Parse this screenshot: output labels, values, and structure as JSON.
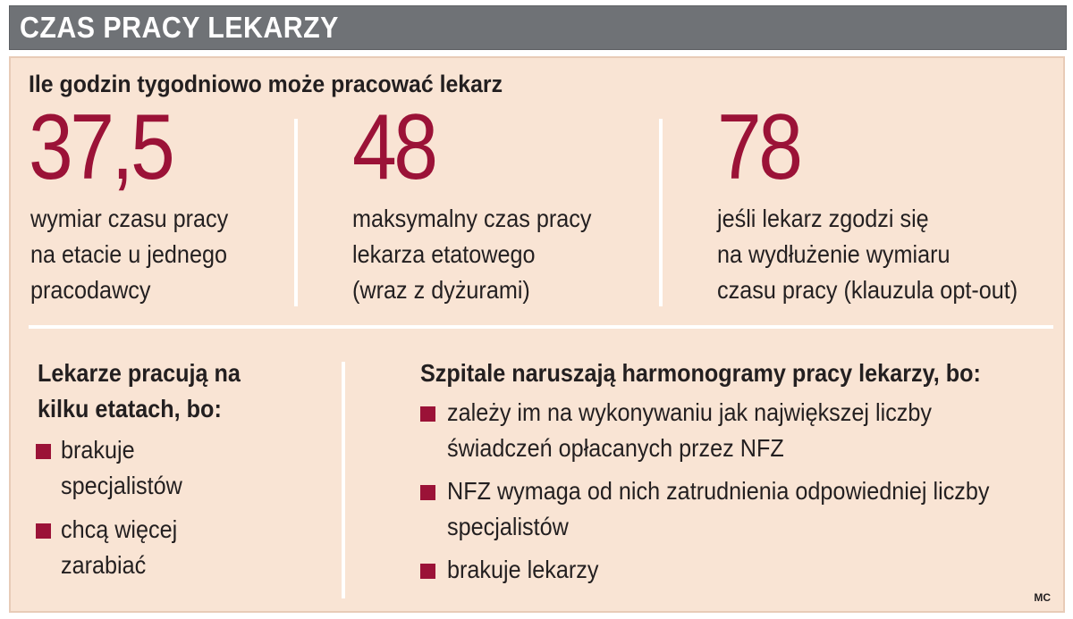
{
  "title": "CZAS PRACY LEKARZY",
  "heading": "Ile godzin tygodniowo może pracować lekarz",
  "stats": [
    {
      "value": "37,5",
      "lines": [
        "wymiar czasu pracy",
        "na etacie u jednego",
        "pracodawcy"
      ]
    },
    {
      "value": "48",
      "lines": [
        "maksymalny czas pracy",
        "lekarza etatowego",
        "(wraz z dyżurami)"
      ]
    },
    {
      "value": "78",
      "lines": [
        "jeśli lekarz zgodzi się",
        "na wydłużenie wymiaru",
        "czasu pracy (klauzula opt-out)"
      ]
    }
  ],
  "left_section": {
    "heading_lines": [
      "Lekarze pracują na",
      "kilku etatach, bo:"
    ],
    "items": [
      {
        "lines": [
          "brakuje",
          "specjalistów"
        ]
      },
      {
        "lines": [
          "chcą więcej",
          "zarabiać"
        ]
      }
    ]
  },
  "right_section": {
    "heading": "Szpitale naruszają harmonogramy pracy lekarzy, bo:",
    "items": [
      {
        "lines": [
          "zależy im na wykonywaniu jak największej liczby",
          "świadczeń opłacanych przez NFZ"
        ]
      },
      {
        "lines": [
          "NFZ wymaga od nich zatrudnienia odpowiedniej liczby",
          "specjalistów"
        ]
      },
      {
        "lines": [
          "brakuje lekarzy"
        ]
      }
    ]
  },
  "credit": "MC",
  "colors": {
    "accent": "#9b1237",
    "panel": "#f9e4d4",
    "title_bar": "#6f7276",
    "text": "#231f20"
  }
}
